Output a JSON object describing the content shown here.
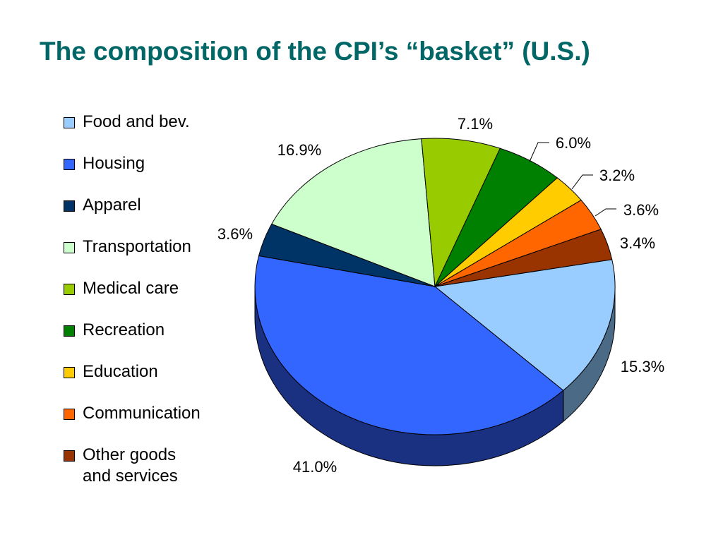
{
  "title": "The composition of the CPI’s “basket” (U.S.)",
  "chart_data": {
    "type": "pie",
    "title": "The composition of the CPI’s “basket” (U.S.)",
    "legend_placement": "left",
    "categories": [
      "Food and bev.",
      "Housing",
      "Apparel",
      "Transportation",
      "Medical care",
      "Recreation",
      "Education",
      "Communication",
      "Other goods\nand services"
    ],
    "values": [
      15.3,
      41.0,
      3.6,
      16.9,
      7.1,
      6.0,
      3.2,
      3.6,
      3.4
    ],
    "data_labels": [
      "15.3%",
      "41.0%",
      "3.6%",
      "16.9%",
      "7.1%",
      "6.0%",
      "3.2%",
      "3.6%",
      "3.4%"
    ],
    "colors": [
      "#99CCFF",
      "#3366FF",
      "#003366",
      "#CCFFCC",
      "#99CC00",
      "#008000",
      "#FFCC00",
      "#FF6600",
      "#993300"
    ],
    "side_colors": [
      "#4A6A86",
      "#1A3080",
      "#001833",
      "#6A8A6A",
      "#4D6600",
      "#004000",
      "#806600",
      "#803300",
      "#4D1A00"
    ]
  }
}
